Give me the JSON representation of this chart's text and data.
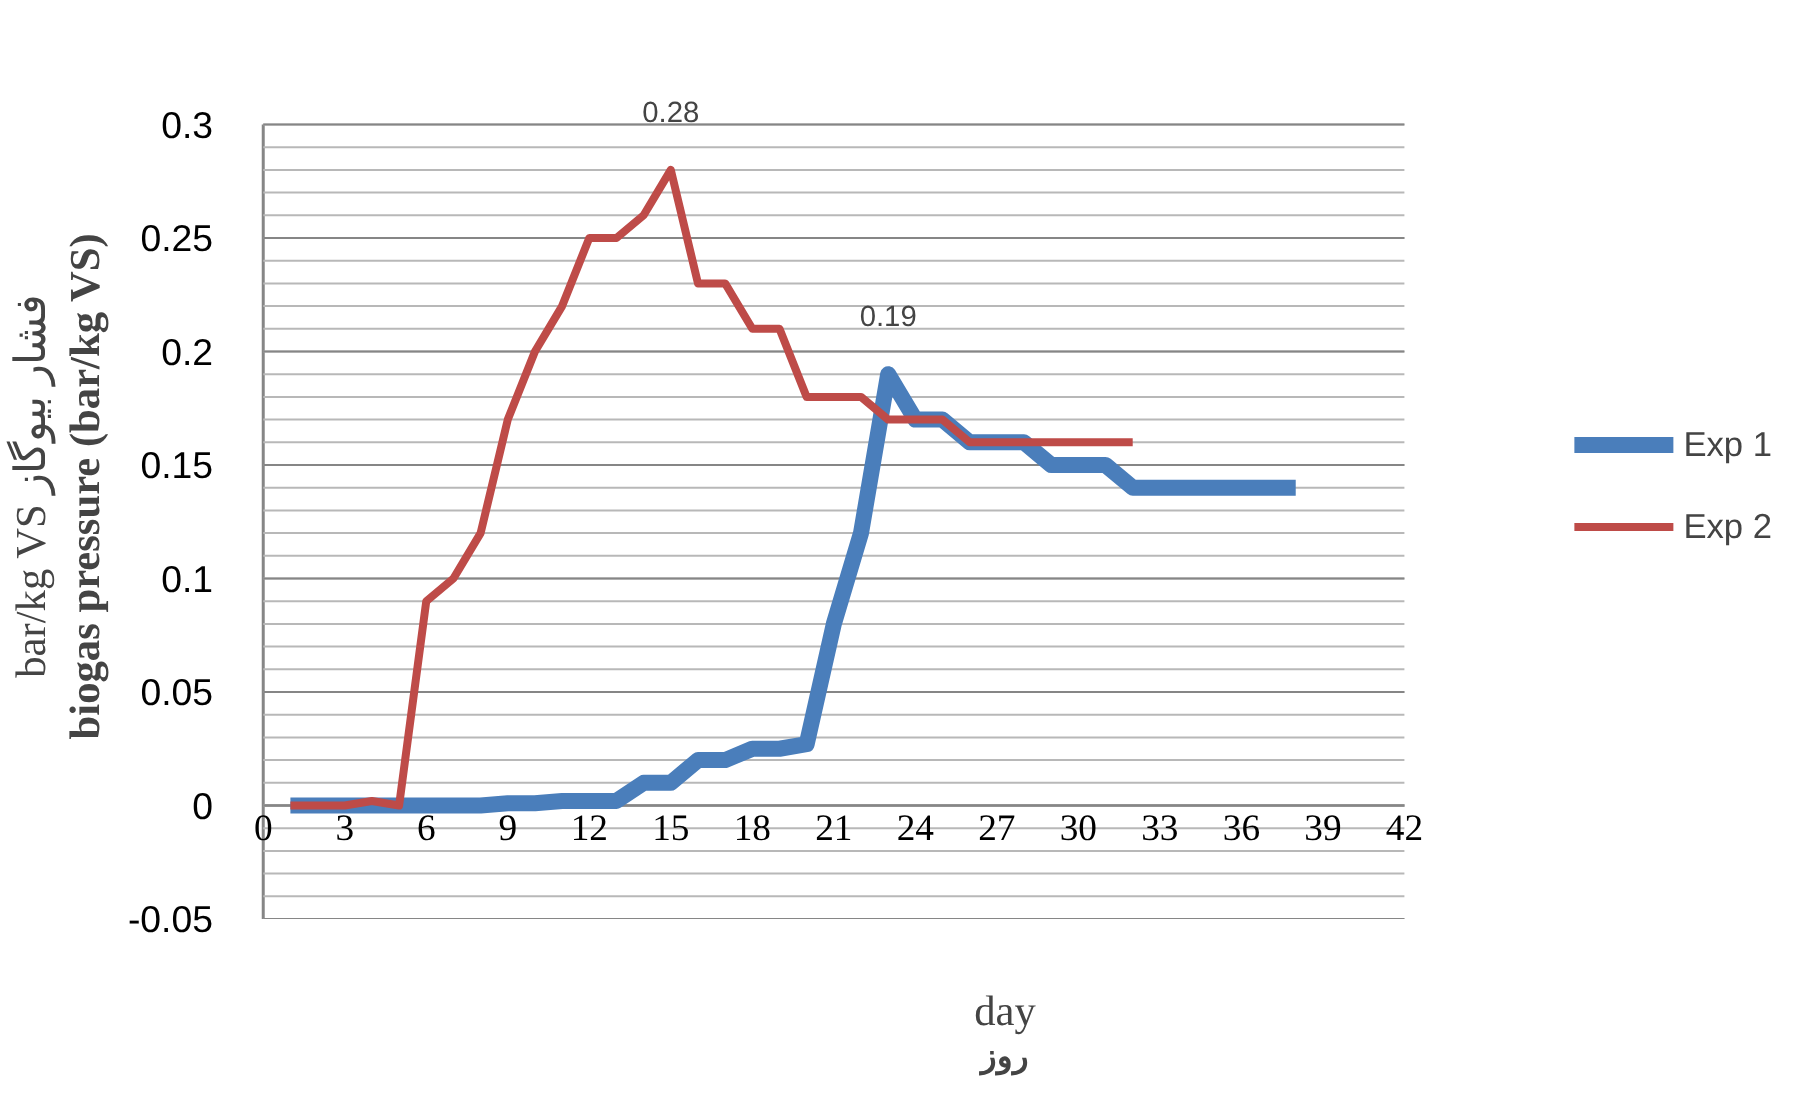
{
  "chart_data": {
    "type": "line",
    "xlabel": "day\nروز",
    "ylabel": "biogas pressure (bar/kg VS)\nbar/kg VS فشار بیوگاز",
    "x": [
      1,
      2,
      3,
      4,
      5,
      6,
      7,
      8,
      9,
      10,
      11,
      12,
      13,
      14,
      15,
      16,
      17,
      18,
      19,
      20,
      21,
      22,
      23,
      24,
      25,
      26,
      27,
      28,
      29,
      30,
      31,
      32,
      33,
      34,
      35,
      36,
      37,
      38
    ],
    "series": [
      {
        "name": "Exp 1",
        "color": "#4a7ebb",
        "values": [
          0,
          0,
          0,
          0,
          0,
          0,
          0,
          0,
          0.001,
          0.001,
          0.002,
          0.002,
          0.002,
          0.01,
          0.01,
          0.02,
          0.02,
          0.025,
          0.025,
          0.027,
          0.08,
          0.12,
          0.19,
          0.17,
          0.17,
          0.16,
          0.16,
          0.16,
          0.15,
          0.15,
          0.15,
          0.14,
          0.14,
          0.14,
          0.14,
          0.14,
          0.14,
          0.14
        ]
      },
      {
        "name": "Exp 2",
        "color": "#be4b48",
        "values": [
          0,
          0,
          0,
          0.002,
          0,
          0.09,
          0.1,
          0.12,
          0.17,
          0.2,
          0.22,
          0.25,
          0.25,
          0.26,
          0.28,
          0.23,
          0.23,
          0.21,
          0.21,
          0.18,
          0.18,
          0.18,
          0.17,
          0.17,
          0.17,
          0.16,
          0.16,
          0.16,
          0.16,
          0.16,
          0.16,
          0.16,
          null,
          null,
          null,
          null,
          null,
          null
        ]
      }
    ],
    "xlim": [
      0,
      42
    ],
    "xticks": [
      0,
      3,
      6,
      9,
      12,
      15,
      18,
      21,
      24,
      27,
      30,
      33,
      36,
      39,
      42
    ],
    "ylim": [
      -0.05,
      0.3
    ],
    "yticks": [
      -0.05,
      0,
      0.05,
      0.1,
      0.15,
      0.2,
      0.25,
      0.3
    ],
    "annotations": [
      {
        "text": "0.28",
        "x": 15,
        "y": 0.28
      },
      {
        "text": "0.19",
        "x": 23,
        "y": 0.19
      }
    ],
    "grid": "y",
    "legend": "right",
    "marker": "none",
    "line_style": "solid"
  }
}
